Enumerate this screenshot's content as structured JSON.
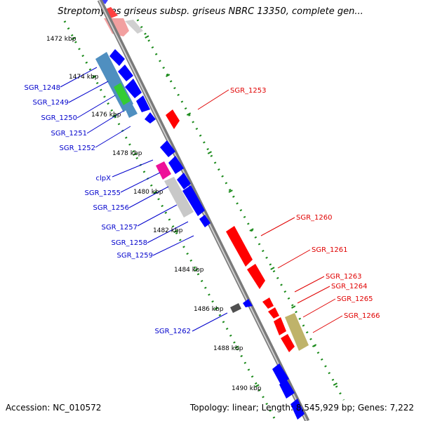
{
  "title": "Streptomyces griseus subsp. griseus NBRC 13350, complete gen...",
  "footer": {
    "accession": "Accession: NC_010572",
    "topology": "Topology: linear; Length: 8,545,929 bp; Genes: 7,222"
  },
  "colors": {
    "backbone": "#8c8c8c",
    "scale_dots": "#1a8a1a",
    "forward_label": "#e00000",
    "reverse_label": "#0000cc",
    "gene_red": "#ff0000",
    "gene_blue": "#0000ff"
  },
  "scale_labels": [
    "1472 kbp",
    "1474 kbp",
    "1476 kbp",
    "1478 kbp",
    "1480 kbp",
    "1482 kbp",
    "1484 kbp",
    "1486 kbp",
    "1488 kbp",
    "1490 kbp"
  ],
  "forward_genes": [
    "SGR_1253",
    "SGR_1260",
    "SGR_1261",
    "SGR_1263",
    "SGR_1264",
    "SGR_1265",
    "SGR_1266"
  ],
  "reverse_genes": [
    "SGR_1248",
    "SGR_1249",
    "SGR_1250",
    "SGR_1251",
    "SGR_1252",
    "clpX",
    "SGR_1255",
    "SGR_1256",
    "SGR_1257",
    "SGR_1258",
    "SGR_1259",
    "SGR_1262"
  ]
}
